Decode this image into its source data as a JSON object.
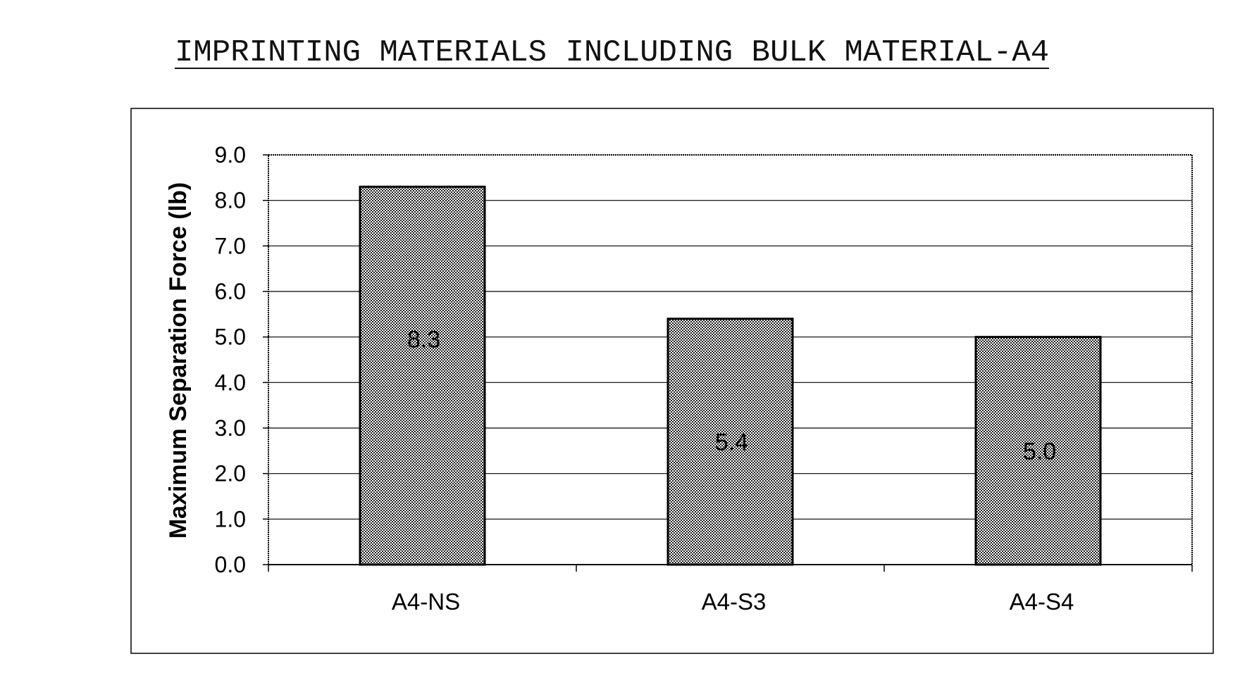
{
  "chart_data": {
    "type": "bar",
    "title": "IMPRINTING MATERIALS INCLUDING BULK MATERIAL-A4",
    "xlabel": "",
    "ylabel": "Maximum Separation Force (lb)",
    "categories": [
      "A4-NS",
      "A4-S3",
      "A4-S4"
    ],
    "values": [
      8.3,
      5.4,
      5.0
    ],
    "data_labels": [
      "8.3",
      "5.4",
      "5.0"
    ],
    "ylim": [
      0,
      9
    ],
    "yticks": [
      0,
      1,
      2,
      3,
      4,
      5,
      6,
      7,
      8,
      9
    ],
    "ytick_labels": [
      "0.0",
      "1.0",
      "2.0",
      "3.0",
      "4.0",
      "5.0",
      "6.0",
      "7.0",
      "8.0",
      "9.0"
    ],
    "grid": true,
    "legend": "none",
    "bar_fill": "stippled gray",
    "colors": {
      "bar_fill": "#b8b8b8",
      "bar_stroke": "#000000",
      "grid": "#000000"
    }
  }
}
